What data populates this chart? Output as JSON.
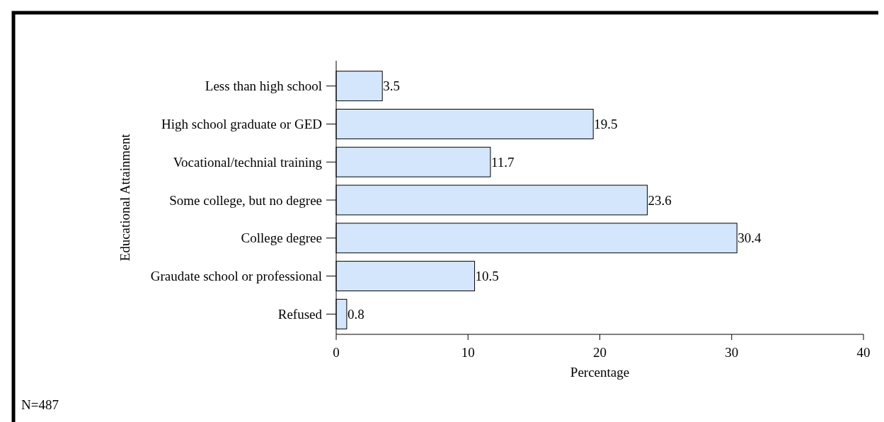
{
  "chart_data": {
    "type": "bar",
    "orientation": "horizontal",
    "xlabel": "Percentage",
    "ylabel": "Educational Attainment",
    "categories": [
      "Less than high school",
      "High school graduate or GED",
      "Vocational/technial training",
      "Some college, but no degree",
      "College degree",
      "Graudate school or professional",
      "Refused"
    ],
    "values": [
      3.5,
      19.5,
      11.7,
      23.6,
      30.4,
      10.5,
      0.8
    ],
    "color": "#d4e6fc",
    "data_labels": true,
    "xlim": [
      0,
      40
    ],
    "xticks": [
      0,
      10,
      20,
      30,
      40
    ],
    "grid": false,
    "annotations": [
      "N=487"
    ]
  }
}
